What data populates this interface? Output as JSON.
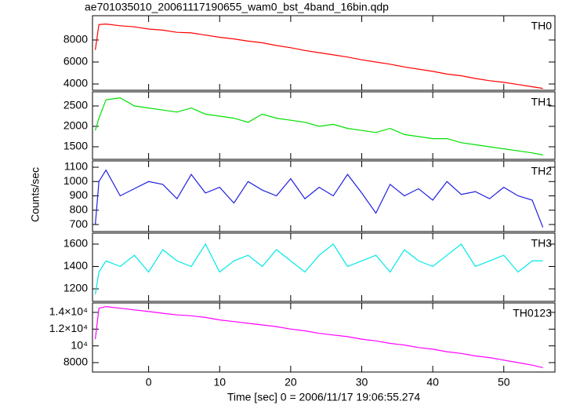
{
  "chart_data": [
    {
      "type": "line",
      "title": "ae701035010_20061117190655_wam0_bst_4band_16bin.qdp",
      "x": [
        -7.5,
        -7,
        -6,
        -4,
        -2,
        0,
        2,
        4,
        6,
        8,
        10,
        12,
        14,
        16,
        18,
        20,
        22,
        24,
        26,
        28,
        30,
        32,
        34,
        36,
        38,
        40,
        42,
        44,
        46,
        48,
        50,
        52,
        54,
        55.5
      ],
      "series": [
        {
          "name": "TH0",
          "color": "#ff0000",
          "values": [
            7100,
            9400,
            9450,
            9300,
            9200,
            9000,
            8900,
            8700,
            8650,
            8450,
            8250,
            8100,
            7900,
            7750,
            7500,
            7300,
            7050,
            6850,
            6650,
            6450,
            6200,
            6000,
            5800,
            5550,
            5350,
            5150,
            4900,
            4750,
            4500,
            4300,
            4150,
            3950,
            3750,
            3600
          ]
        }
      ],
      "xlim": [
        -7.9,
        57.2
      ],
      "xticks": [
        0,
        10,
        20,
        30,
        40,
        50
      ],
      "ylim": [
        3430,
        10210
      ],
      "yticks": [
        4000,
        6000,
        8000
      ]
    },
    {
      "type": "line",
      "x": [
        -7.5,
        -7,
        -6,
        -4,
        -2,
        0,
        2,
        4,
        6,
        8,
        10,
        12,
        14,
        16,
        18,
        20,
        22,
        24,
        26,
        28,
        30,
        32,
        34,
        36,
        38,
        40,
        42,
        44,
        46,
        48,
        50,
        52,
        54,
        55.5
      ],
      "series": [
        {
          "name": "TH1",
          "color": "#00e000",
          "values": [
            1900,
            2200,
            2650,
            2700,
            2500,
            2450,
            2400,
            2350,
            2450,
            2300,
            2250,
            2200,
            2100,
            2300,
            2200,
            2150,
            2100,
            2000,
            2050,
            1950,
            1900,
            1850,
            1950,
            1800,
            1750,
            1700,
            1700,
            1600,
            1550,
            1500,
            1450,
            1400,
            1350,
            1300
          ]
        }
      ],
      "xlim": [
        -7.9,
        57.2
      ],
      "xticks": [
        0,
        10,
        20,
        30,
        40,
        50
      ],
      "ylim": [
        1192,
        2846
      ],
      "yticks": [
        1500,
        2000,
        2500
      ]
    },
    {
      "type": "line",
      "ylabel": "Counts/sec",
      "x": [
        -7.5,
        -7,
        -6,
        -4,
        -2,
        0,
        2,
        4,
        6,
        8,
        10,
        12,
        14,
        16,
        18,
        20,
        22,
        24,
        26,
        28,
        30,
        32,
        34,
        36,
        38,
        40,
        42,
        44,
        46,
        48,
        50,
        52,
        54,
        55.5
      ],
      "series": [
        {
          "name": "TH2",
          "color": "#2020e0",
          "values": [
            700,
            1000,
            1080,
            900,
            950,
            1000,
            980,
            880,
            1050,
            920,
            960,
            850,
            1000,
            940,
            900,
            1020,
            880,
            960,
            900,
            1050,
            920,
            780,
            980,
            900,
            950,
            870,
            1000,
            910,
            930,
            880,
            960,
            900,
            870,
            680
          ]
        }
      ],
      "xlim": [
        -7.9,
        57.2
      ],
      "xticks": [
        0,
        10,
        20,
        30,
        40,
        50
      ],
      "ylim": [
        651,
        1144
      ],
      "yticks": [
        700,
        800,
        900,
        1000,
        1100
      ]
    },
    {
      "type": "line",
      "x": [
        -7.5,
        -7,
        -6,
        -4,
        -2,
        0,
        2,
        4,
        6,
        8,
        10,
        12,
        14,
        16,
        18,
        20,
        22,
        24,
        26,
        28,
        30,
        32,
        34,
        36,
        38,
        40,
        42,
        44,
        46,
        48,
        50,
        52,
        54,
        55.5
      ],
      "series": [
        {
          "name": "TH3",
          "color": "#00e8e8",
          "values": [
            1150,
            1350,
            1450,
            1400,
            1500,
            1350,
            1550,
            1450,
            1400,
            1600,
            1350,
            1450,
            1500,
            1400,
            1550,
            1450,
            1350,
            1500,
            1600,
            1400,
            1450,
            1500,
            1350,
            1550,
            1450,
            1400,
            1500,
            1600,
            1400,
            1450,
            1500,
            1350,
            1450,
            1450
          ]
        }
      ],
      "xlim": [
        -7.9,
        57.2
      ],
      "xticks": [
        0,
        10,
        20,
        30,
        40,
        50
      ],
      "ylim": [
        1088,
        1698
      ],
      "yticks": [
        1200,
        1400,
        1600
      ]
    },
    {
      "type": "line",
      "xlabel": "Time [sec] 0 = 2006/11/17 19:06:55.274",
      "x": [
        -7.5,
        -7,
        -6,
        -4,
        -2,
        0,
        2,
        4,
        6,
        8,
        10,
        12,
        14,
        16,
        18,
        20,
        22,
        24,
        26,
        28,
        30,
        32,
        34,
        36,
        38,
        40,
        42,
        44,
        46,
        48,
        50,
        52,
        54,
        55.5
      ],
      "series": [
        {
          "name": "TH0123",
          "color": "#ff00ff",
          "values": [
            10800,
            14500,
            14700,
            14500,
            14300,
            14100,
            13900,
            13700,
            13600,
            13400,
            13100,
            12900,
            12700,
            12500,
            12300,
            12000,
            11800,
            11500,
            11300,
            11100,
            10800,
            10600,
            10300,
            10100,
            9800,
            9600,
            9300,
            9100,
            8800,
            8600,
            8300,
            8000,
            7700,
            7400
          ]
        }
      ],
      "xlim": [
        -7.9,
        57.2
      ],
      "xticks": [
        0,
        10,
        20,
        30,
        40,
        50
      ],
      "ylim": [
        6873,
        15127
      ],
      "yticks": [
        8000,
        {
          "value": 10000,
          "label": "10⁴"
        },
        {
          "value": 12000,
          "label": "1.2×10⁴"
        },
        {
          "value": 14000,
          "label": "1.4×10⁴"
        }
      ]
    }
  ]
}
